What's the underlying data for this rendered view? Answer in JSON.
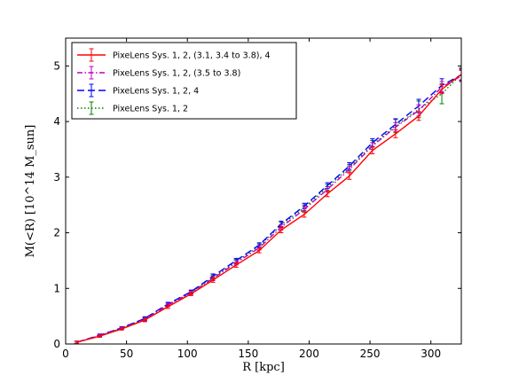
{
  "chart_data": {
    "type": "line",
    "xlabel": "R [kpc]",
    "ylabel": "M(<R) [10^14 M_sun]",
    "xlim": [
      0,
      325
    ],
    "ylim": [
      0,
      5.5
    ],
    "xticks": [
      0,
      50,
      100,
      150,
      200,
      250,
      300
    ],
    "yticks": [
      0,
      1,
      2,
      3,
      4,
      5
    ],
    "grid": false,
    "legend_position": "top-left",
    "series": [
      {
        "name": "PixeLens Sys. 1, 2, (3.1, 3.4 to 3.8), 4",
        "color": "#ff0000",
        "dash": "solid",
        "x": [
          9,
          28,
          46,
          65,
          84,
          103,
          121,
          140,
          159,
          177,
          196,
          215,
          233,
          252,
          271,
          290,
          309,
          325
        ],
        "y": [
          0.03,
          0.14,
          0.27,
          0.43,
          0.67,
          0.9,
          1.15,
          1.42,
          1.68,
          2.05,
          2.33,
          2.7,
          3.02,
          3.48,
          3.78,
          4.1,
          4.58,
          4.85
        ],
        "yerr": [
          0.02,
          0.02,
          0.02,
          0.03,
          0.03,
          0.03,
          0.04,
          0.04,
          0.04,
          0.05,
          0.05,
          0.05,
          0.06,
          0.06,
          0.07,
          0.08,
          0.08,
          0.1
        ]
      },
      {
        "name": "PixeLens Sys. 1, 2, (3.5 to 3.8)",
        "color": "#bf00bf",
        "dash": "dashdot",
        "x": [
          9,
          28,
          46,
          65,
          84,
          103,
          121,
          140,
          159,
          177,
          196,
          215,
          233,
          252,
          271,
          290,
          309,
          325
        ],
        "y": [
          0.03,
          0.15,
          0.28,
          0.44,
          0.7,
          0.92,
          1.18,
          1.46,
          1.73,
          2.1,
          2.42,
          2.78,
          3.14,
          3.56,
          3.9,
          4.2,
          4.62,
          4.82
        ],
        "yerr": [
          0.02,
          0.02,
          0.02,
          0.03,
          0.03,
          0.03,
          0.04,
          0.04,
          0.04,
          0.05,
          0.05,
          0.05,
          0.06,
          0.06,
          0.08,
          0.1,
          0.1,
          0.1
        ]
      },
      {
        "name": "PixeLens Sys. 1, 2, 4",
        "color": "#0000ff",
        "dash": "dashed",
        "x": [
          9,
          28,
          46,
          65,
          84,
          103,
          121,
          140,
          159,
          177,
          196,
          215,
          233,
          252,
          271,
          290,
          309,
          325
        ],
        "y": [
          0.03,
          0.16,
          0.29,
          0.46,
          0.72,
          0.94,
          1.22,
          1.5,
          1.78,
          2.16,
          2.48,
          2.85,
          3.2,
          3.62,
          3.95,
          4.28,
          4.65,
          4.84
        ],
        "yerr": [
          0.02,
          0.02,
          0.02,
          0.03,
          0.03,
          0.03,
          0.04,
          0.04,
          0.04,
          0.05,
          0.05,
          0.05,
          0.06,
          0.07,
          0.1,
          0.12,
          0.12,
          0.1
        ]
      },
      {
        "name": "PixeLens Sys. 1, 2",
        "color": "#008000",
        "dash": "dotted",
        "x": [
          9,
          28,
          46,
          65,
          84,
          103,
          121,
          140,
          159,
          177,
          196,
          215,
          233,
          252,
          271,
          290,
          309,
          325
        ],
        "y": [
          0.03,
          0.15,
          0.29,
          0.45,
          0.71,
          0.93,
          1.2,
          1.48,
          1.76,
          2.14,
          2.45,
          2.82,
          3.17,
          3.58,
          3.92,
          4.22,
          4.5,
          4.85
        ],
        "yerr": [
          0.02,
          0.02,
          0.02,
          0.03,
          0.03,
          0.03,
          0.04,
          0.04,
          0.04,
          0.05,
          0.05,
          0.05,
          0.06,
          0.08,
          0.12,
          0.15,
          0.18,
          0.12
        ]
      }
    ]
  }
}
